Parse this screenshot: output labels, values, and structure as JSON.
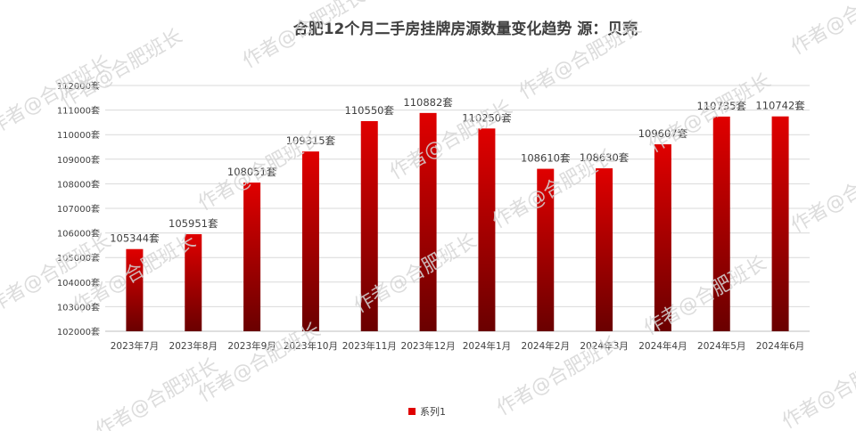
{
  "watermark": "作者@合肥班长",
  "colors": {
    "bar_top": "#e00000",
    "bar_bottom": "#6a0000",
    "grid": "#d9d9d9",
    "text": "#404040",
    "title": "#404040"
  },
  "chart_data": {
    "type": "bar",
    "title": "合肥12个月二手房挂牌房源数量变化趋势  源：贝壳",
    "categories": [
      "2023年7月",
      "2023年8月",
      "2023年9月",
      "2023年10月",
      "2023年11月",
      "2023年12月",
      "2024年1月",
      "2024年2月",
      "2024年3月",
      "2024年4月",
      "2024年5月",
      "2024年6月"
    ],
    "series": [
      {
        "name": "系列1",
        "values": [
          105344,
          105951,
          108051,
          109315,
          110550,
          110882,
          110250,
          108610,
          108630,
          109607,
          110735,
          110742
        ],
        "labels": [
          "105344套",
          "105951套",
          "108051套",
          "109315套",
          "110550套",
          "110882套",
          "110250套",
          "108610套",
          "108630套",
          "109607套",
          "110735套",
          "110742套"
        ]
      }
    ],
    "ylim": [
      102000,
      112000
    ],
    "yticks": [
      "102000套",
      "103000套",
      "104000套",
      "105000套",
      "106000套",
      "107000套",
      "108000套",
      "109000套",
      "110000套",
      "111000套",
      "112000套"
    ],
    "grid": true,
    "legend": "bottom"
  }
}
